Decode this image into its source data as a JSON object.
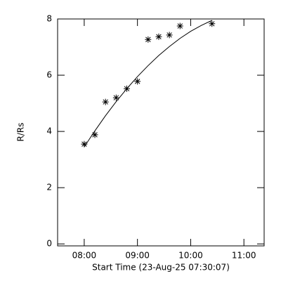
{
  "chart_data": {
    "type": "scatter",
    "xlabel": "Start Time (23-Aug-25 07:30:07)",
    "ylabel": "R/Rs",
    "series": [
      {
        "x": [
          8.0,
          8.2,
          8.4,
          8.6,
          8.8,
          9.0,
          9.2,
          9.4,
          9.6,
          9.8,
          10.4
        ],
        "values": [
          3.55,
          3.88,
          5.05,
          5.2,
          5.52,
          5.78,
          7.27,
          7.37,
          7.43,
          7.75,
          7.83
        ],
        "color": "#000000",
        "marker": "asterisk"
      },
      {
        "x": [
          8.0,
          8.2,
          8.4,
          8.6,
          8.8,
          9.0,
          9.2,
          9.4,
          9.6,
          9.8,
          10.0,
          10.2,
          10.4
        ],
        "values": [
          3.45,
          4.02,
          4.56,
          5.06,
          5.52,
          5.95,
          6.34,
          6.7,
          7.02,
          7.31,
          7.56,
          7.77,
          7.95
        ],
        "color": "#000000",
        "marker": "line"
      }
    ],
    "xlim": [
      7.5,
      11.38
    ],
    "xticks": [
      {
        "value": 8,
        "label": "08:00"
      },
      {
        "value": 9,
        "label": "09:00"
      },
      {
        "value": 10,
        "label": "10:00"
      },
      {
        "value": 11,
        "label": "11:00"
      }
    ],
    "ylim": [
      -0.07,
      8.0
    ],
    "yticks": [
      0,
      2,
      4,
      6,
      8
    ]
  }
}
